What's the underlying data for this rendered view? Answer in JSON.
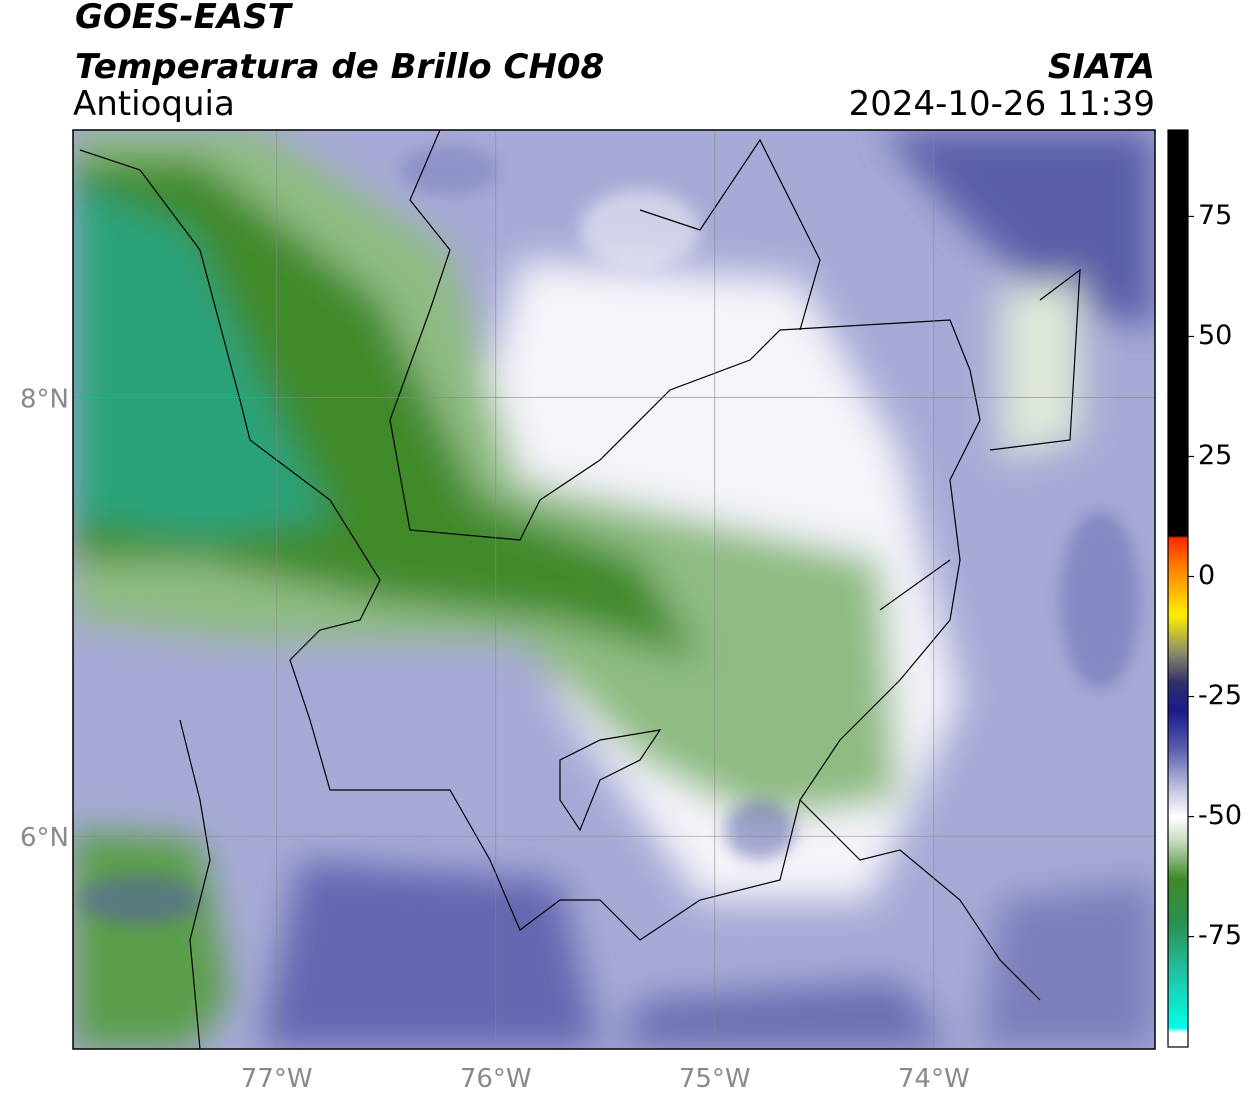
{
  "header": {
    "satellite": "GOES-EAST",
    "product": "Temperatura de Brillo CH08",
    "region": "Antioquia",
    "agency": "SIATA",
    "timestamp": "2024-10-26 11:39"
  },
  "map": {
    "xlim": [
      -77.93,
      -72.99
    ],
    "ylim": [
      5.03,
      9.22
    ],
    "xticks": [
      {
        "value": -77,
        "label": "77°W"
      },
      {
        "value": -76,
        "label": "76°W"
      },
      {
        "value": -75,
        "label": "75°W"
      },
      {
        "value": -74,
        "label": "74°W"
      }
    ],
    "yticks": [
      {
        "value": 8,
        "label": "8°N"
      },
      {
        "value": 6,
        "label": "6°N"
      }
    ],
    "grid": true
  },
  "colorbar": {
    "lim": [
      -98,
      93
    ],
    "ticks": [
      75,
      50,
      25,
      0,
      -25,
      -50,
      -75
    ],
    "colorscale": [
      [
        93,
        "#000000"
      ],
      [
        8.5,
        "#000000"
      ],
      [
        8,
        "#ff2a00"
      ],
      [
        2,
        "#ff7f00"
      ],
      [
        -8,
        "#ffee00"
      ],
      [
        -16,
        "#8a8a6a"
      ],
      [
        -22,
        "#30306a"
      ],
      [
        -28,
        "#1a1a8a"
      ],
      [
        -36,
        "#5b5fb0"
      ],
      [
        -45,
        "#c9cbe6"
      ],
      [
        -50,
        "#ffffff"
      ],
      [
        -55,
        "#c9dcc0"
      ],
      [
        -63,
        "#3f8a2a"
      ],
      [
        -72,
        "#2a8f50"
      ],
      [
        -82,
        "#22c0a0"
      ],
      [
        -94,
        "#00ffe8"
      ],
      [
        -95,
        "#ffffff"
      ],
      [
        -98,
        "#ffffff"
      ]
    ]
  }
}
